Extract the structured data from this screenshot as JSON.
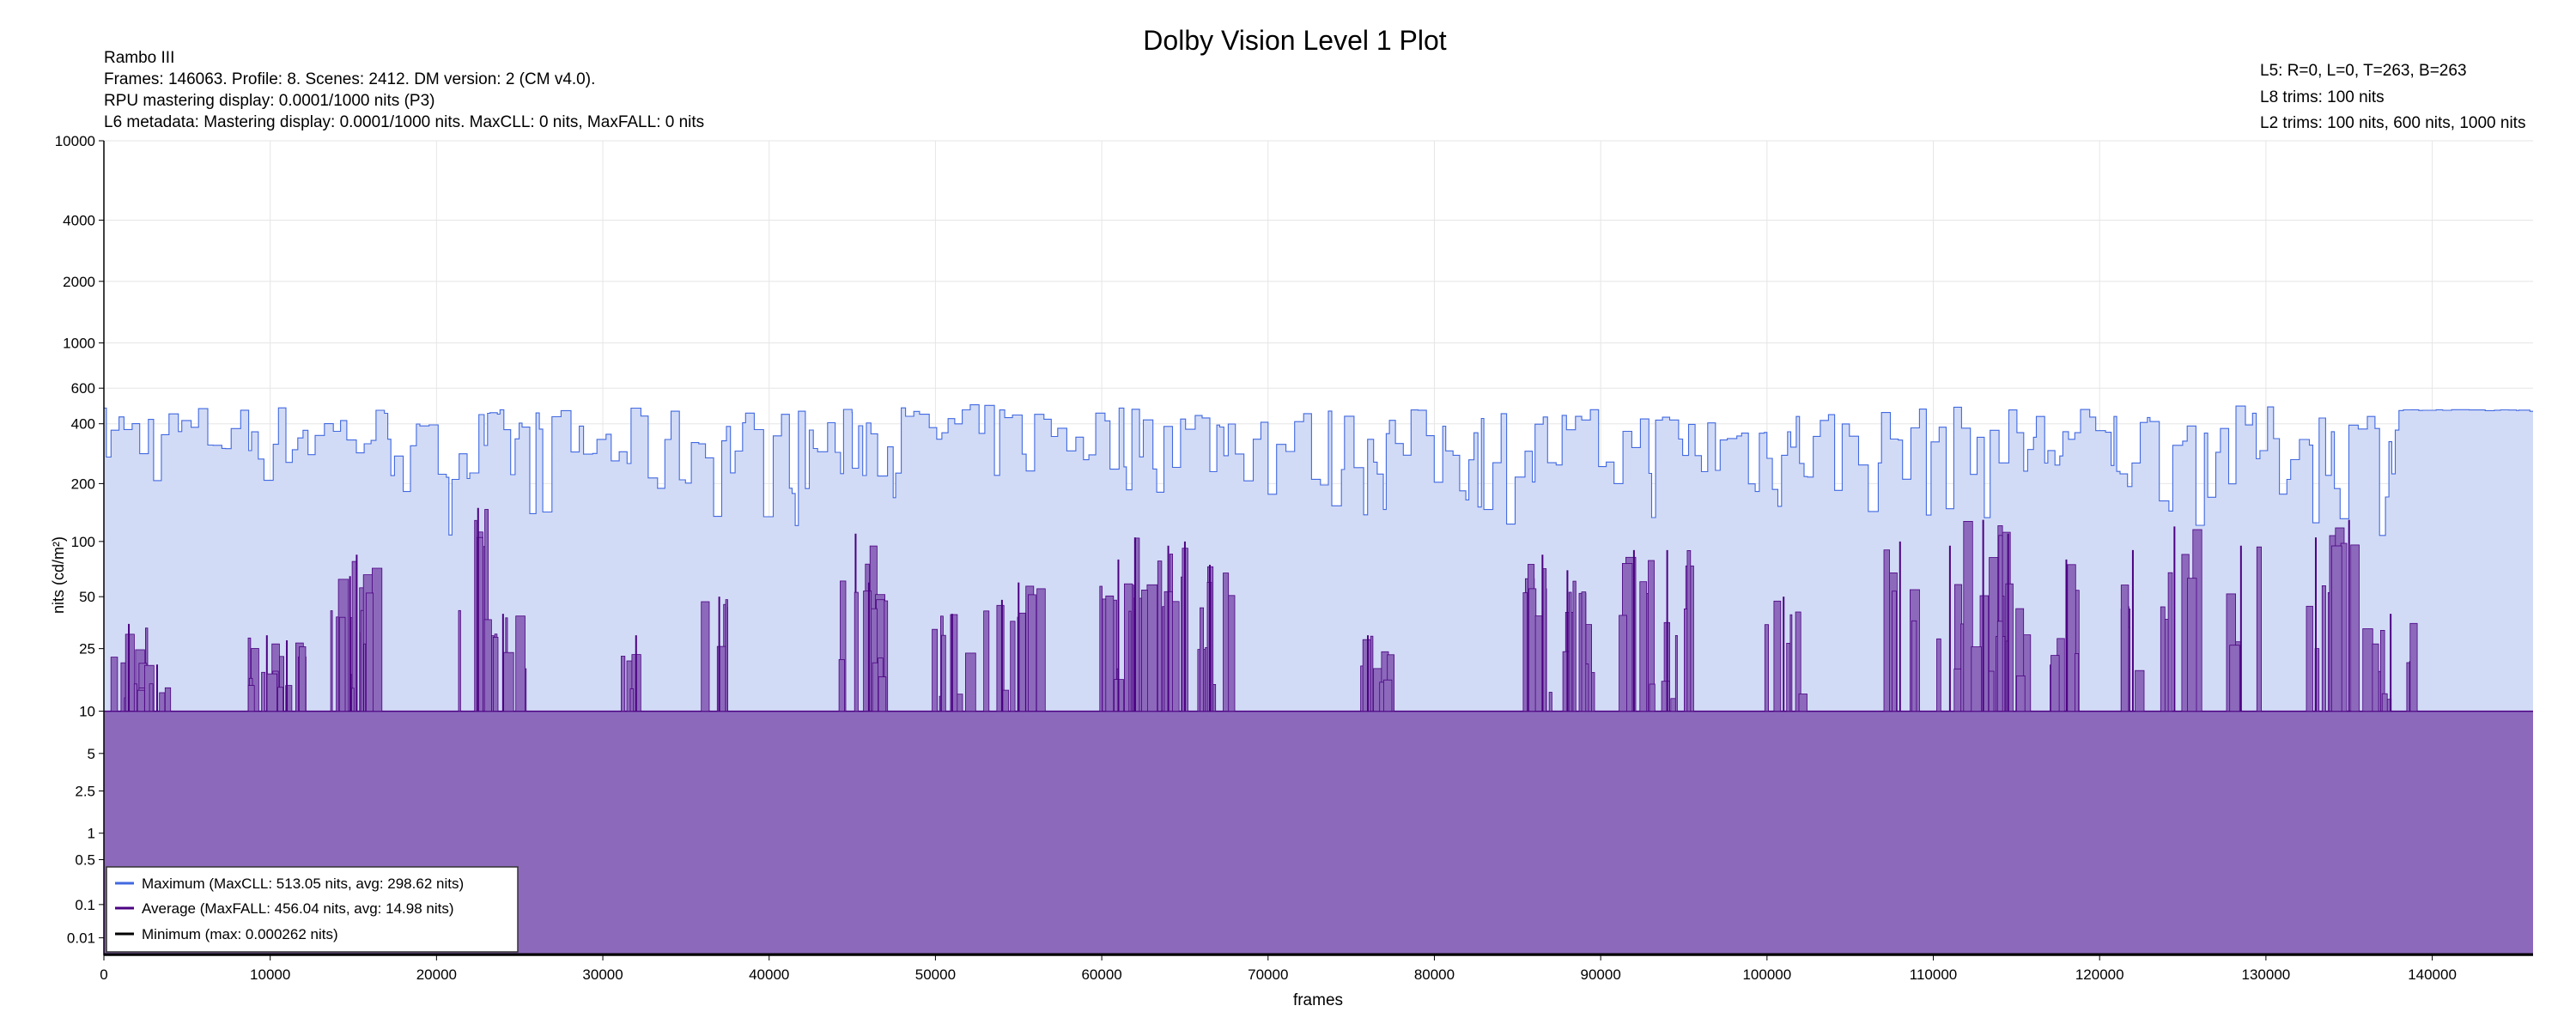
{
  "chart_data": {
    "type": "area",
    "title": "Dolby Vision Level 1 Plot",
    "info_left": [
      "Rambo III",
      "Frames: 146063. Profile: 8. Scenes: 2412. DM version: 2 (CM v4.0).",
      "RPU mastering display: 0.0001/1000 nits  (P3)",
      "L6 metadata: Mastering display: 0.0001/1000 nits. MaxCLL: 0 nits, MaxFALL: 0 nits"
    ],
    "info_right": [
      "L5: R=0, L=0, T=263, B=263",
      "L8 trims: 100 nits",
      "L2 trims: 100 nits, 600 nits, 1000 nits"
    ],
    "xlabel": "frames",
    "ylabel": "nits (cd/m²)",
    "xlim": [
      0,
      146063
    ],
    "x_ticks": [
      0,
      10000,
      20000,
      30000,
      40000,
      50000,
      60000,
      70000,
      80000,
      90000,
      100000,
      110000,
      120000,
      130000,
      140000
    ],
    "x_tick_labels": [
      "0",
      "10000",
      "20000",
      "30000",
      "40000",
      "50000",
      "60000",
      "70000",
      "80000",
      "90000",
      "100000",
      "110000",
      "120000",
      "130000",
      "140000"
    ],
    "y_scale": "pq",
    "ylim": [
      0,
      10000
    ],
    "y_ticks": [
      0.01,
      0.1,
      0.5,
      1,
      2.5,
      5,
      10,
      25,
      50,
      100,
      200,
      400,
      600,
      1000,
      2000,
      4000,
      10000
    ],
    "y_tick_labels": [
      "0.01",
      "0.1",
      "0.5",
      "1",
      "2.5",
      "5",
      "10",
      "25",
      "50",
      "100",
      "200",
      "400",
      "600",
      "1000",
      "2000",
      "4000",
      "10000"
    ],
    "grid": true,
    "legend_position": "bottom-left",
    "legend": [
      "Maximum (MaxCLL: 513.05 nits, avg: 298.62 nits)",
      "Average (MaxFALL: 456.04 nits, avg: 14.98 nits)",
      "Minimum (max: 0.000262 nits)"
    ],
    "series": [
      {
        "name": "Maximum",
        "color": "#4169e1",
        "fill": "#d2dbf6",
        "dense_ranges": [
          {
            "from": 0,
            "to": 18000,
            "low": 150,
            "high": 500
          },
          {
            "from": 18000,
            "to": 22000,
            "low": 100,
            "high": 420
          },
          {
            "from": 22000,
            "to": 45000,
            "low": 100,
            "high": 480
          },
          {
            "from": 45000,
            "to": 70000,
            "low": 150,
            "high": 500
          },
          {
            "from": 70000,
            "to": 100000,
            "low": 100,
            "high": 480
          },
          {
            "from": 100000,
            "to": 138000,
            "low": 100,
            "high": 490
          },
          {
            "from": 138000,
            "to": 146063,
            "low": 460,
            "high": 470
          }
        ],
        "avg": 298.62,
        "peak": 513.05
      },
      {
        "name": "Average",
        "color": "#4b0082",
        "fill": "#8c69bb",
        "baseline": 10,
        "spikes": [
          {
            "x": 1500,
            "y": 35
          },
          {
            "x": 3200,
            "y": 20
          },
          {
            "x": 9800,
            "y": 30
          },
          {
            "x": 11000,
            "y": 28
          },
          {
            "x": 14800,
            "y": 65
          },
          {
            "x": 15200,
            "y": 85
          },
          {
            "x": 22500,
            "y": 150
          },
          {
            "x": 24000,
            "y": 40
          },
          {
            "x": 32000,
            "y": 30
          },
          {
            "x": 37000,
            "y": 50
          },
          {
            "x": 45200,
            "y": 110
          },
          {
            "x": 46000,
            "y": 60
          },
          {
            "x": 51000,
            "y": 40
          },
          {
            "x": 54000,
            "y": 48
          },
          {
            "x": 55000,
            "y": 60
          },
          {
            "x": 61000,
            "y": 80
          },
          {
            "x": 62000,
            "y": 105
          },
          {
            "x": 64000,
            "y": 95
          },
          {
            "x": 65000,
            "y": 100
          },
          {
            "x": 66500,
            "y": 75
          },
          {
            "x": 76000,
            "y": 30
          },
          {
            "x": 86500,
            "y": 85
          },
          {
            "x": 88000,
            "y": 70
          },
          {
            "x": 92000,
            "y": 90
          },
          {
            "x": 94000,
            "y": 90
          },
          {
            "x": 101000,
            "y": 50
          },
          {
            "x": 108000,
            "y": 100
          },
          {
            "x": 111000,
            "y": 95
          },
          {
            "x": 113000,
            "y": 130
          },
          {
            "x": 114500,
            "y": 110
          },
          {
            "x": 118000,
            "y": 80
          },
          {
            "x": 122000,
            "y": 90
          },
          {
            "x": 124500,
            "y": 120
          },
          {
            "x": 128500,
            "y": 95
          },
          {
            "x": 133000,
            "y": 105
          },
          {
            "x": 135000,
            "y": 130
          },
          {
            "x": 137500,
            "y": 40
          }
        ],
        "avg": 14.98,
        "peak": 456.04
      },
      {
        "name": "Minimum",
        "color": "#000000",
        "max": 0.000262
      }
    ]
  }
}
